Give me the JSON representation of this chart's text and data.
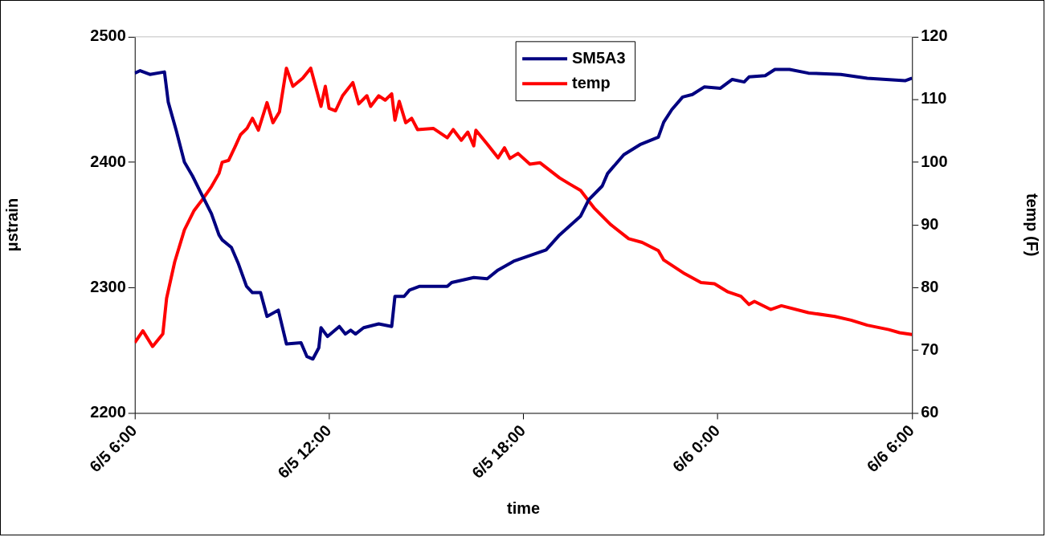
{
  "chart_data": {
    "type": "line",
    "xlabel": "time",
    "ylabel": "μstrain",
    "y2label": "temp (F)",
    "xlim": [
      "--06-05T06:00",
      "--06-06T06:00"
    ],
    "xticks": [
      {
        "value": "--06-05T06:00",
        "label": "6/5 6:00"
      },
      {
        "value": "--06-05T12:00",
        "label": "6/5 12:00"
      },
      {
        "value": "--06-05T18:00",
        "label": "6/5 18:00"
      },
      {
        "value": "--06-06T00:00",
        "label": "6/6 0:00"
      },
      {
        "value": "--06-06T06:00",
        "label": "6/6 6:00"
      }
    ],
    "ylim": [
      2200,
      2500
    ],
    "yticks": [
      2200,
      2300,
      2400,
      2500
    ],
    "y2lim": [
      60,
      120
    ],
    "y2ticks": [
      60,
      70,
      80,
      90,
      100,
      110,
      120
    ],
    "grid": false,
    "legend": "top",
    "marker": "none",
    "line_style": "solid",
    "series": [
      {
        "name": "SM5A3",
        "color": "#000080",
        "x": [
          "--06-05T06:00",
          "--06-05T06:10",
          "--06-05T06:28",
          "--06-05T06:55",
          "--06-05T07:02",
          "--06-05T07:17",
          "--06-05T07:32",
          "--06-05T07:47",
          "--06-05T08:02",
          "--06-05T08:22",
          "--06-05T08:36",
          "--06-05T08:42",
          "--06-05T08:59",
          "--06-05T09:12",
          "--06-05T09:27",
          "--06-05T09:38",
          "--06-05T09:53",
          "--06-05T10:05",
          "--06-05T10:26",
          "--06-05T10:41",
          "--06-05T11:08",
          "--06-05T11:19",
          "--06-05T11:30",
          "--06-05T11:41",
          "--06-05T11:45",
          "--06-05T11:57",
          "--06-05T12:19",
          "--06-05T12:30",
          "--06-05T12:40",
          "--06-05T12:49",
          "--06-05T13:04",
          "--06-05T13:32",
          "--06-05T13:56",
          "--06-05T14:02",
          "--06-05T14:19",
          "--06-05T14:29",
          "--06-05T14:48",
          "--06-05T15:39",
          "--06-05T15:47",
          "--06-05T16:28",
          "--06-05T16:53",
          "--06-05T17:13",
          "--06-05T17:42",
          "--06-05T18:42",
          "--06-05T19:07",
          "--06-05T19:46",
          "--06-05T20:01",
          "--06-05T20:26",
          "--06-05T20:36",
          "--06-05T21:06",
          "--06-05T21:36",
          "--06-05T22:10",
          "--06-05T22:20",
          "--06-05T22:35",
          "--06-05T22:55",
          "--06-05T23:13",
          "--06-05T23:35",
          "--06-06T00:05",
          "--06-06T00:27",
          "--06-06T00:49",
          "--06-06T00:58",
          "--06-06T01:28",
          "--06-06T01:46",
          "--06-06T02:13",
          "--06-06T02:48",
          "--06-06T03:48",
          "--06-06T04:37",
          "--06-06T05:47",
          "--06-06T06:00"
        ],
        "values": [
          2471,
          2473,
          2470,
          2472,
          2448,
          2425,
          2400,
          2389,
          2376,
          2359,
          2342,
          2338,
          2332,
          2319,
          2301,
          2296,
          2296,
          2277,
          2282,
          2255,
          2256,
          2245,
          2243,
          2252,
          2268,
          2261,
          2269,
          2263,
          2266,
          2263,
          2268,
          2271,
          2269,
          2293,
          2293,
          2298,
          2301,
          2301,
          2304,
          2308,
          2307,
          2314,
          2321,
          2330,
          2342,
          2357,
          2370,
          2381,
          2391,
          2406,
          2414,
          2420,
          2432,
          2442,
          2452,
          2454,
          2460,
          2459,
          2466,
          2464,
          2468,
          2469,
          2474,
          2474,
          2471,
          2470,
          2467,
          2465,
          2467
        ]
      },
      {
        "name": "temp",
        "color": "#ff0000",
        "axis": "y2",
        "x": [
          "--06-05T06:00",
          "--06-05T06:15",
          "--06-05T06:33",
          "--06-05T06:52",
          "--06-05T06:59",
          "--06-05T07:14",
          "--06-05T07:32",
          "--06-05T07:50",
          "--06-05T08:05",
          "--06-05T08:22",
          "--06-05T08:36",
          "--06-05T08:42",
          "--06-05T08:54",
          "--06-05T09:06",
          "--06-05T09:16",
          "--06-05T09:28",
          "--06-05T09:38",
          "--06-05T09:49",
          "--06-05T10:05",
          "--06-05T10:16",
          "--06-05T10:28",
          "--06-05T10:41",
          "--06-05T10:53",
          "--06-05T11:11",
          "--06-05T11:26",
          "--06-05T11:45",
          "--06-05T11:53",
          "--06-05T12:00",
          "--06-05T12:12",
          "--06-05T12:25",
          "--06-05T12:44",
          "--06-05T12:55",
          "--06-05T13:10",
          "--06-05T13:17",
          "--06-05T13:32",
          "--06-05T13:44",
          "--06-05T13:56",
          "--06-05T14:02",
          "--06-05T14:10",
          "--06-05T14:22",
          "--06-05T14:33",
          "--06-05T14:44",
          "--06-05T15:13",
          "--06-05T15:39",
          "--06-05T15:50",
          "--06-05T16:05",
          "--06-05T16:17",
          "--06-05T16:28",
          "--06-05T16:32",
          "--06-05T16:53",
          "--06-05T17:13",
          "--06-05T17:25",
          "--06-05T17:35",
          "--06-05T17:50",
          "--06-05T18:12",
          "--06-05T18:31",
          "--06-05T19:07",
          "--06-05T19:26",
          "--06-05T19:46",
          "--06-05T20:11",
          "--06-05T20:41",
          "--06-05T21:15",
          "--06-05T21:40",
          "--06-05T22:10",
          "--06-05T22:20",
          "--06-05T22:59",
          "--06-05T23:29",
          "--06-05T23:54",
          "--06-06T00:19",
          "--06-06T00:43",
          "--06-06T00:58",
          "--06-06T01:08",
          "--06-06T01:38",
          "--06-06T01:58",
          "--06-06T02:48",
          "--06-06T03:37",
          "--06-06T04:07",
          "--06-06T04:37",
          "--06-06T05:17",
          "--06-06T05:37",
          "--06-06T06:00"
        ],
        "values": [
          71.2,
          73.1,
          70.6,
          72.6,
          78.3,
          84.1,
          89.2,
          92.3,
          94,
          96.1,
          98.2,
          100,
          100.3,
          102.5,
          104.4,
          105.4,
          107,
          105.1,
          109.5,
          106.3,
          108,
          115,
          112.1,
          113.4,
          115,
          108.9,
          112.1,
          108.6,
          108.2,
          110.6,
          112.7,
          109.3,
          110.6,
          108.9,
          110.6,
          109.9,
          110.9,
          106.7,
          109.7,
          106.3,
          107,
          105.2,
          105.4,
          103.9,
          105.2,
          103.5,
          104.8,
          102.6,
          105.1,
          102.9,
          100.7,
          102.3,
          100.6,
          101.4,
          99.7,
          99.9,
          97.5,
          96.5,
          95.5,
          92.7,
          90.1,
          87.8,
          87.2,
          85.9,
          84.4,
          82.2,
          80.8,
          80.6,
          79.3,
          78.6,
          77.3,
          77.8,
          76.5,
          77.1,
          76,
          75.4,
          74.8,
          74,
          73.3,
          72.8,
          72.5
        ]
      }
    ]
  }
}
